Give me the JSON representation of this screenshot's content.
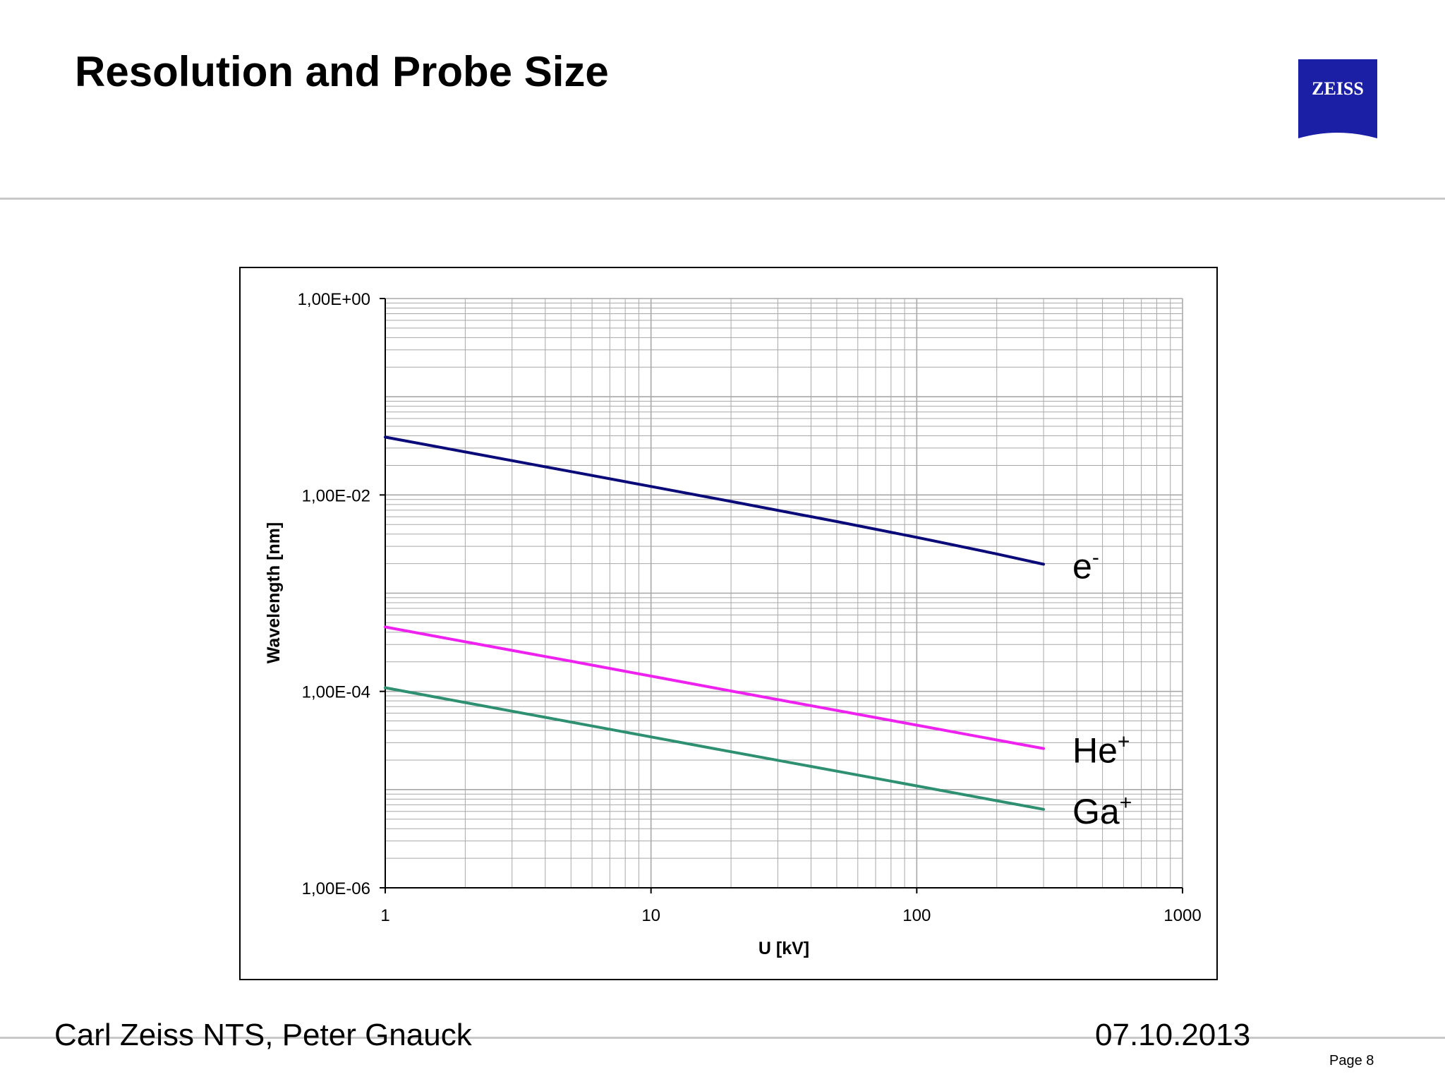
{
  "slide": {
    "title": "Resolution and Probe Size",
    "logo_text": "ZEISS",
    "footer_left": "Carl Zeiss NTS, Peter Gnauck",
    "footer_date": "07.10.2013",
    "page_label": "Page 8"
  },
  "colors": {
    "logo_blue": "#1a1fa6",
    "grid": "#a8a8a8",
    "axis": "#000000"
  },
  "chart_data": {
    "type": "line",
    "xlabel": "U [kV]",
    "ylabel": "Wavelength [nm]",
    "x_scale": "log",
    "y_scale": "log",
    "xlim": [
      1,
      1000
    ],
    "ylim": [
      1e-06,
      1
    ],
    "x_ticks": [
      "1",
      "10",
      "100",
      "1000"
    ],
    "y_ticks": [
      "1,00E-06",
      "1,00E-04",
      "1,00E-02",
      "1,00E+00"
    ],
    "grid": true,
    "legend": "inline labels at right end of lines",
    "series": [
      {
        "name": "e-",
        "label_base": "e",
        "label_sup": "-",
        "color": "#0a0a78",
        "x": [
          1,
          2,
          5,
          10,
          20,
          50,
          100,
          200,
          300
        ],
        "y": [
          0.0388,
          0.0274,
          0.0173,
          0.0122,
          0.00859,
          0.00536,
          0.0037,
          0.00251,
          0.00197
        ]
      },
      {
        "name": "He+",
        "label_base": "He",
        "label_sup": "+",
        "color": "#ee22ee",
        "x": [
          1,
          2,
          5,
          10,
          20,
          50,
          100,
          200,
          300
        ],
        "y": [
          0.000453,
          0.00032,
          0.000203,
          0.000143,
          0.000101,
          6.4e-05,
          4.53e-05,
          3.2e-05,
          2.62e-05
        ]
      },
      {
        "name": "Ga+",
        "label_base": "Ga",
        "label_sup": "+",
        "color": "#2e9070",
        "x": [
          1,
          2,
          5,
          10,
          20,
          50,
          100,
          200,
          300
        ],
        "y": [
          0.000109,
          7.7e-05,
          4.87e-05,
          3.44e-05,
          2.43e-05,
          1.54e-05,
          1.09e-05,
          7.7e-06,
          6.3e-06
        ]
      }
    ]
  }
}
